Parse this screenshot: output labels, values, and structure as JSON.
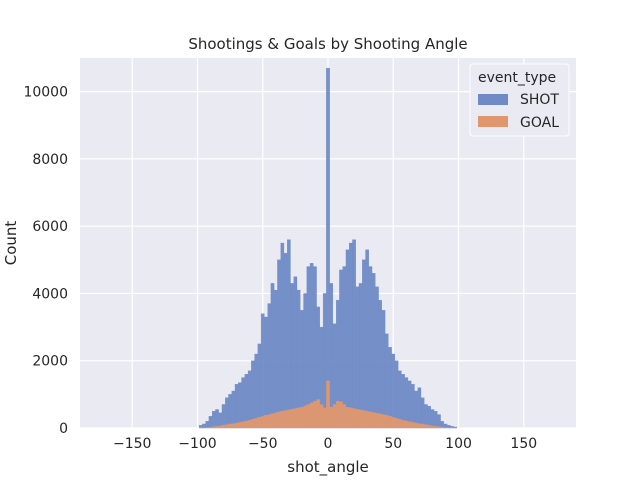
{
  "chart_data": {
    "type": "bar",
    "title": "Shootings & Goals by Shooting Angle",
    "xlabel": "shot_angle",
    "ylabel": "Count",
    "xlim": [
      -190,
      190
    ],
    "ylim": [
      0,
      11000
    ],
    "xticks": [
      -150,
      -100,
      -50,
      0,
      50,
      100,
      150
    ],
    "yticks": [
      0,
      2000,
      4000,
      6000,
      8000,
      10000
    ],
    "grid": true,
    "bin_width": 2.5,
    "legend": {
      "title": "event_type",
      "placement": "top-right"
    },
    "bin_centers": [
      -97.5,
      -95,
      -92.5,
      -90,
      -87.5,
      -85,
      -82.5,
      -80,
      -77.5,
      -75,
      -72.5,
      -70,
      -67.5,
      -65,
      -62.5,
      -60,
      -57.5,
      -55,
      -52.5,
      -50,
      -47.5,
      -45,
      -42.5,
      -40,
      -37.5,
      -35,
      -32.5,
      -30,
      -27.5,
      -25,
      -22.5,
      -20,
      -17.5,
      -15,
      -12.5,
      -10,
      -7.5,
      -5,
      -2.5,
      0,
      2.5,
      5,
      7.5,
      10,
      12.5,
      15,
      17.5,
      20,
      22.5,
      25,
      27.5,
      30,
      32.5,
      35,
      37.5,
      40,
      42.5,
      45,
      47.5,
      50,
      52.5,
      55,
      57.5,
      60,
      62.5,
      65,
      67.5,
      70,
      72.5,
      75,
      77.5,
      80,
      82.5,
      85,
      87.5,
      90,
      92.5,
      95,
      97.5
    ],
    "series": [
      {
        "name": "SHOT",
        "color": "#6f8ac5",
        "values": [
          80,
          120,
          200,
          350,
          500,
          550,
          450,
          700,
          900,
          1000,
          1100,
          1300,
          1350,
          1500,
          1600,
          1700,
          2000,
          2200,
          2500,
          3400,
          3300,
          3700,
          4300,
          4100,
          5000,
          5500,
          5200,
          5600,
          4300,
          4500,
          4100,
          3500,
          4000,
          4800,
          4900,
          4800,
          3600,
          3000,
          4000,
          10700,
          4300,
          3100,
          3800,
          4700,
          4800,
          5300,
          5500,
          5600,
          4200,
          4300,
          5000,
          5300,
          4800,
          4600,
          4200,
          3800,
          3500,
          2800,
          2400,
          2200,
          2000,
          1700,
          1600,
          1500,
          1400,
          1300,
          1100,
          1200,
          900,
          700,
          650,
          550,
          500,
          400,
          200,
          120,
          80,
          50,
          30
        ]
      },
      {
        "name": "GOAL",
        "color": "#e0976e",
        "values": [
          5,
          10,
          15,
          25,
          40,
          50,
          60,
          80,
          100,
          120,
          130,
          150,
          170,
          190,
          210,
          230,
          260,
          290,
          320,
          350,
          380,
          400,
          430,
          450,
          480,
          500,
          520,
          540,
          560,
          580,
          600,
          620,
          660,
          700,
          750,
          800,
          850,
          700,
          600,
          1400,
          620,
          700,
          800,
          780,
          700,
          620,
          600,
          580,
          560,
          540,
          520,
          500,
          480,
          460,
          440,
          420,
          400,
          380,
          350,
          320,
          290,
          260,
          230,
          210,
          190,
          170,
          150,
          130,
          120,
          100,
          80,
          60,
          50,
          40,
          25,
          15,
          10,
          5,
          3
        ]
      }
    ]
  }
}
